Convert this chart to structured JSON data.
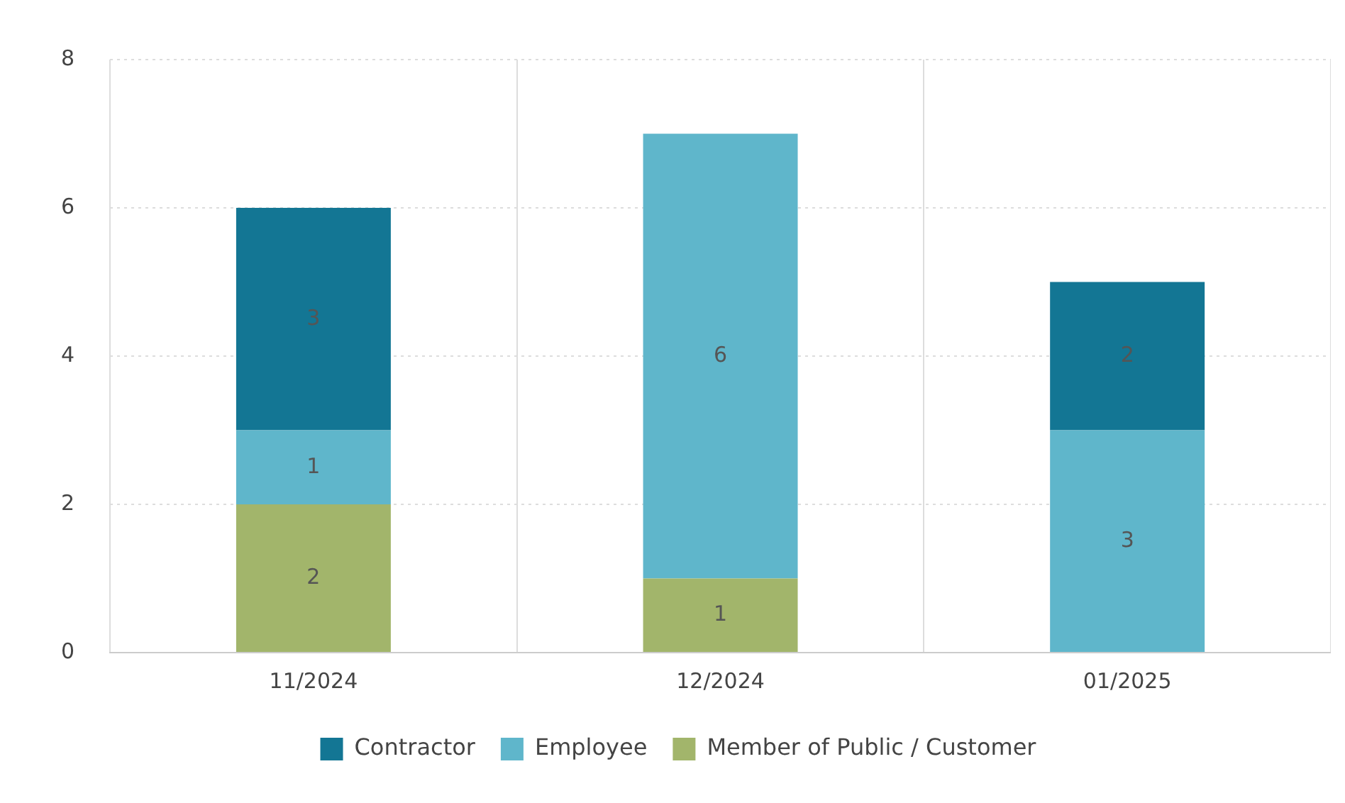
{
  "chart_data": {
    "type": "bar",
    "stacked": true,
    "categories": [
      "11/2024",
      "12/2024",
      "01/2025"
    ],
    "series": [
      {
        "name": "Member of Public / Customer",
        "color": "#a2b56b",
        "values": [
          2,
          1,
          null
        ]
      },
      {
        "name": "Employee",
        "color": "#5fb6cb",
        "values": [
          1,
          6,
          3
        ]
      },
      {
        "name": "Contractor",
        "color": "#137694",
        "values": [
          3,
          null,
          2
        ]
      }
    ],
    "ylim": [
      0,
      8
    ],
    "yticks": [
      0,
      2,
      4,
      6,
      8
    ],
    "grid": true,
    "legend": "bottom",
    "data_labels": true
  }
}
